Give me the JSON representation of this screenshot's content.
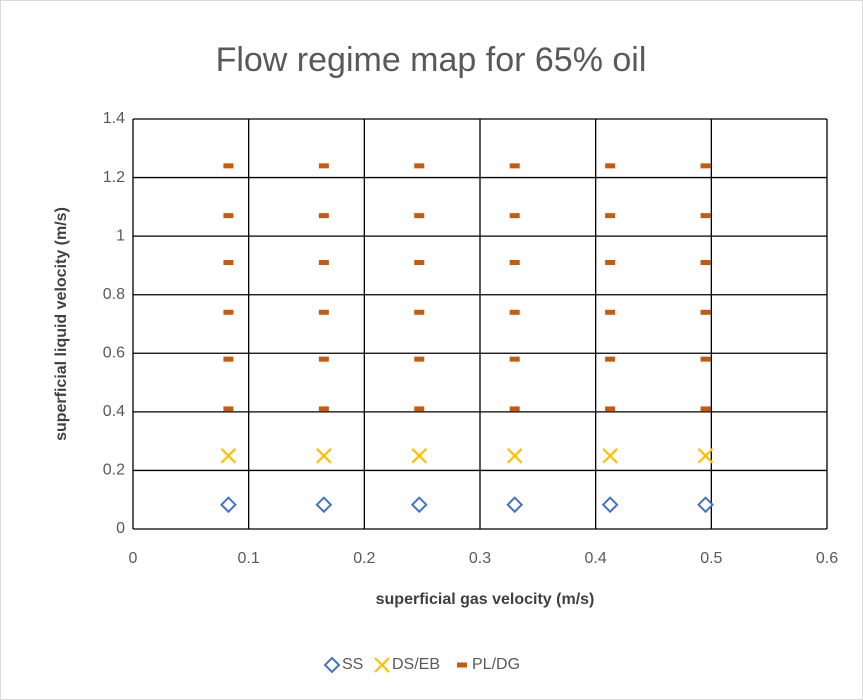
{
  "chart_data": {
    "type": "scatter",
    "title": "Flow regime map for 65% oil",
    "x_label": "superficial gas velocity (m/s)",
    "y_label": "superficial liquid velocity (m/s)",
    "xlim": [
      0,
      0.6
    ],
    "xticks": [
      0,
      0.1,
      0.2,
      0.3,
      0.4,
      0.5,
      0.6
    ],
    "ylim": [
      0,
      1.4
    ],
    "yticks": [
      0,
      0.2,
      0.4,
      0.6,
      0.8,
      1,
      1.2,
      1.4
    ],
    "grid": true,
    "legend": "bottom",
    "series": [
      {
        "name": "SS",
        "color": "#4472c4",
        "marker": "diamond",
        "x": [
          0.0825,
          0.165,
          0.2475,
          0.33,
          0.4125,
          0.495
        ],
        "values": [
          0.083,
          0.083,
          0.083,
          0.083,
          0.083,
          0.083
        ]
      },
      {
        "name": "DS/EB",
        "color": "#ffc000",
        "marker": "x",
        "x": [
          0.0825,
          0.165,
          0.2475,
          0.33,
          0.4125,
          0.495
        ],
        "values": [
          0.25,
          0.25,
          0.25,
          0.25,
          0.25,
          0.25
        ]
      },
      {
        "name": "PL/DG",
        "color": "#c55a11",
        "marker": "dash",
        "x": [
          0.0825,
          0.0825,
          0.0825,
          0.0825,
          0.0825,
          0.0825,
          0.165,
          0.165,
          0.165,
          0.165,
          0.165,
          0.165,
          0.2475,
          0.2475,
          0.2475,
          0.2475,
          0.2475,
          0.2475,
          0.33,
          0.33,
          0.33,
          0.33,
          0.33,
          0.33,
          0.4125,
          0.4125,
          0.4125,
          0.4125,
          0.4125,
          0.4125,
          0.495,
          0.495,
          0.495,
          0.495,
          0.495,
          0.495
        ],
        "values": [
          0.41,
          0.58,
          0.74,
          0.91,
          1.07,
          1.24,
          0.41,
          0.58,
          0.74,
          0.91,
          1.07,
          1.24,
          0.41,
          0.58,
          0.74,
          0.91,
          1.07,
          1.24,
          0.41,
          0.58,
          0.74,
          0.91,
          1.07,
          1.24,
          0.41,
          0.58,
          0.74,
          0.91,
          1.07,
          1.24,
          0.41,
          0.58,
          0.74,
          0.91,
          1.07,
          1.24
        ]
      }
    ]
  }
}
